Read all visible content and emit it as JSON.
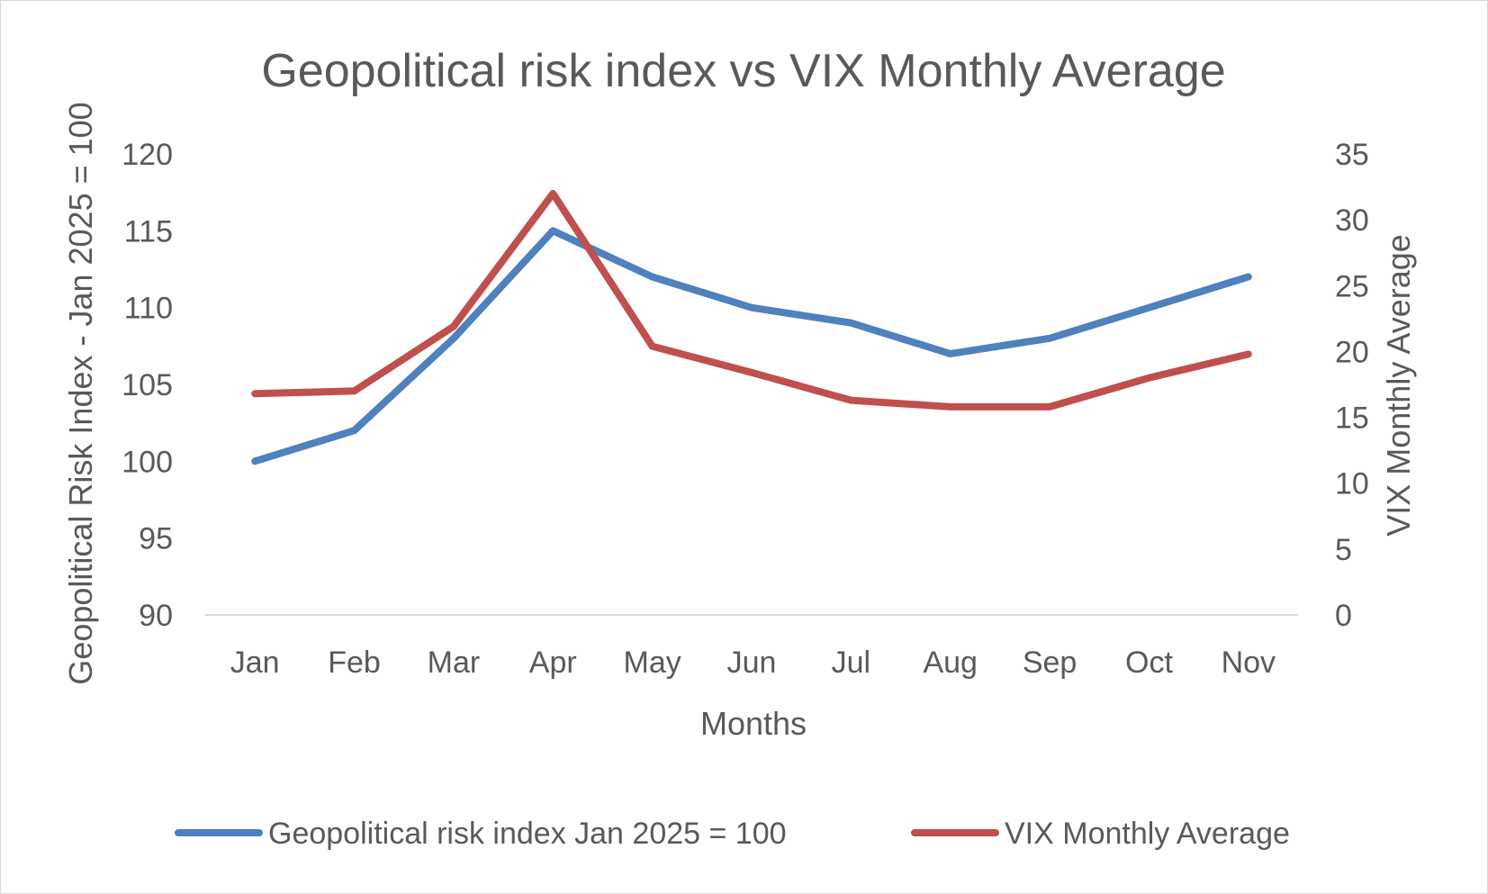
{
  "chart_data": {
    "type": "line",
    "title": "Geopolitical risk index vs VIX Monthly Average",
    "xlabel": "Months",
    "ylabel": "Geopolitical Risk Index - Jan 2025 = 100",
    "y2label": "VIX Monthly Average",
    "categories": [
      "Jan",
      "Feb",
      "Mar",
      "Apr",
      "May",
      "Jun",
      "Jul",
      "Aug",
      "Sep",
      "Oct",
      "Nov"
    ],
    "ylim": [
      90,
      120
    ],
    "yticks": [
      90,
      95,
      100,
      105,
      110,
      115,
      120
    ],
    "y2lim": [
      0,
      35
    ],
    "y2ticks": [
      0,
      5,
      10,
      15,
      20,
      25,
      30,
      35
    ],
    "grid": false,
    "legend_position": "bottom",
    "series": [
      {
        "name": "Geopolitical risk index Jan 2025 = 100",
        "axis": "left",
        "color": "#4e81bd",
        "values": [
          100,
          102,
          108,
          115,
          112,
          110,
          109,
          107,
          108,
          110,
          112
        ]
      },
      {
        "name": "VIX Monthly Average",
        "axis": "right",
        "color": "#c0504d",
        "values": [
          16.8,
          17.0,
          21.9,
          32.0,
          20.4,
          18.4,
          16.3,
          15.8,
          15.8,
          18.0,
          19.8
        ]
      }
    ]
  }
}
